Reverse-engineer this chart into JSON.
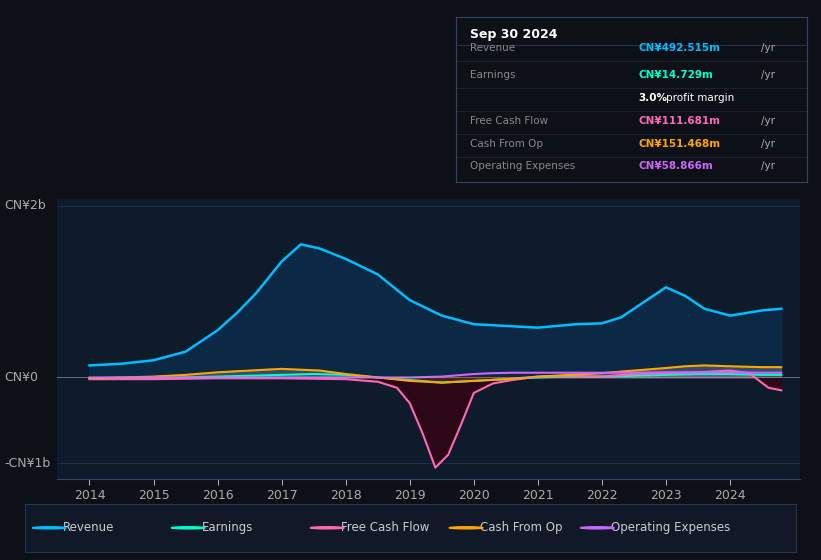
{
  "bg_color": "#0d1117",
  "plot_bg_color": "#0d1b2a",
  "ylabel_top": "CN¥2b",
  "ylabel_zero": "CN¥0",
  "ylabel_bottom": "-CN¥1b",
  "revenue_color": "#00bfff",
  "earnings_color": "#00ffcc",
  "fcf_color": "#ff69b4",
  "cashfromop_color": "#ffa500",
  "opex_color": "#cc66ff",
  "info_box": {
    "date": "Sep 30 2024",
    "revenue": "CN¥492.515m",
    "earnings": "CN¥14.729m",
    "profit_margin": "3.0%",
    "fcf": "CN¥111.681m",
    "cashfromop": "CN¥151.468m",
    "opex": "CN¥58.866m"
  },
  "legend_labels": [
    "Revenue",
    "Earnings",
    "Free Cash Flow",
    "Cash From Op",
    "Operating Expenses"
  ]
}
